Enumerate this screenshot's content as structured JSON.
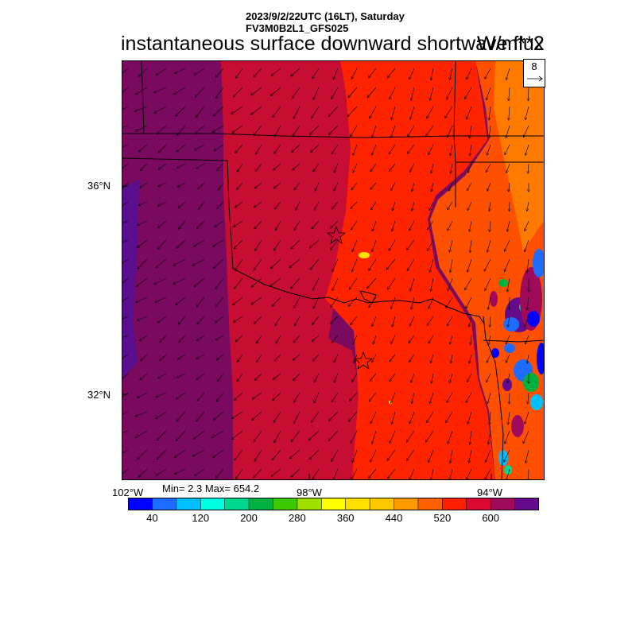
{
  "header": {
    "line1": "2023/9/2/22UTC (16LT), Saturday",
    "line2": "FV3M0B2L1_GFS025",
    "title": "instantaneous surface downward shortwave flux",
    "units": "W/m**2"
  },
  "reference_vector": {
    "value": "8"
  },
  "axes": {
    "lat_labels": [
      "36°N",
      "32°N"
    ],
    "lon_labels": [
      "102°W",
      "98°W",
      "94°W"
    ]
  },
  "stats": {
    "text": "Min= 2.3 Max= 654.2"
  },
  "colorbar": {
    "tick_labels": [
      "40",
      "120",
      "200",
      "280",
      "360",
      "440",
      "520",
      "600"
    ],
    "colors": [
      "#0000ff",
      "#1e6bff",
      "#00bfff",
      "#00ffe0",
      "#00d890",
      "#00b040",
      "#3cc800",
      "#a0e000",
      "#ffff00",
      "#ffe000",
      "#ffc800",
      "#ff9a00",
      "#ff6000",
      "#ff2000",
      "#dc0a32",
      "#a00a5a",
      "#640a8c"
    ]
  },
  "map_colors": {
    "purple_deep": "#5a0d8c",
    "purple": "#7a0a5f",
    "magenta_red": "#a00a4a",
    "crimson": "#c80d32",
    "red": "#ff2400",
    "orange_red": "#ff5000",
    "orange": "#ff7a00"
  }
}
